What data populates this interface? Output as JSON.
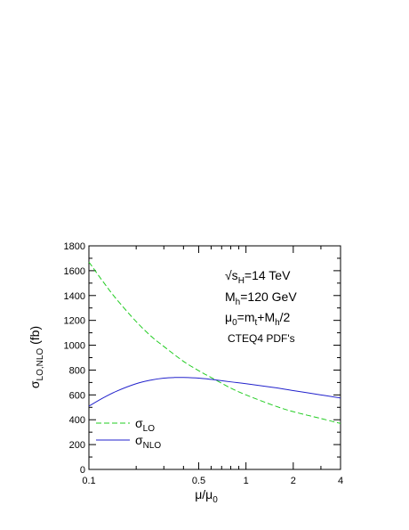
{
  "chart_data": {
    "type": "line",
    "title": "",
    "xlabel": {
      "main": "μ/μ",
      "sub": "0"
    },
    "ylabel": {
      "main": "σ",
      "sub": "LO,NLO",
      "tail": " (fb)"
    },
    "x_scale": "log",
    "xlim": [
      0.1,
      4
    ],
    "ylim": [
      0,
      1800
    ],
    "x_ticks_major": [
      {
        "value": 0.1,
        "label": "0.1"
      },
      {
        "value": 0.5,
        "label": "0.5"
      },
      {
        "value": 1,
        "label": "1"
      },
      {
        "value": 2,
        "label": "2"
      },
      {
        "value": 4,
        "label": "4"
      }
    ],
    "x_ticks_minor": [
      0.2,
      0.3,
      0.4,
      0.6,
      0.7,
      0.8,
      0.9,
      3
    ],
    "y_ticks": [
      {
        "value": 0,
        "label": "0"
      },
      {
        "value": 200,
        "label": "200"
      },
      {
        "value": 400,
        "label": "400"
      },
      {
        "value": 600,
        "label": "600"
      },
      {
        "value": 800,
        "label": "800"
      },
      {
        "value": 1000,
        "label": "1000"
      },
      {
        "value": 1200,
        "label": "1200"
      },
      {
        "value": 1400,
        "label": "1400"
      },
      {
        "value": 1600,
        "label": "1600"
      },
      {
        "value": 1800,
        "label": "1800"
      }
    ],
    "y_minor_step": 100,
    "grid": false,
    "legend_position": "bottom-left",
    "series": [
      {
        "name": {
          "main": "σ",
          "sub": "LO"
        },
        "color": "#22cc22",
        "dash": "dashed",
        "x": [
          0.1,
          0.125,
          0.15,
          0.2,
          0.25,
          0.3,
          0.4,
          0.5,
          0.6,
          0.8,
          1.0,
          1.5,
          2.0,
          3.0,
          4.0
        ],
        "y": [
          1670,
          1500,
          1370,
          1190,
          1070,
          990,
          870,
          795,
          740,
          655,
          600,
          515,
          465,
          410,
          370
        ]
      },
      {
        "name": {
          "main": "σ",
          "sub": "NLO"
        },
        "color": "#2222cc",
        "dash": "solid",
        "x": [
          0.1,
          0.125,
          0.15,
          0.2,
          0.25,
          0.3,
          0.35,
          0.4,
          0.5,
          0.6,
          0.8,
          1.0,
          1.5,
          2.0,
          3.0,
          4.0
        ],
        "y": [
          510,
          580,
          630,
          690,
          720,
          735,
          740,
          740,
          735,
          725,
          705,
          690,
          660,
          635,
          600,
          575
        ]
      }
    ],
    "annotations": {
      "line1": {
        "prefix": "√s",
        "sub": "H",
        "suffix": "=14 TeV"
      },
      "line2": {
        "prefix": "M",
        "sub": "h",
        "suffix": "=120 GeV"
      },
      "line3": {
        "prefix": "μ",
        "sub": "0",
        "suffix": "=m",
        "sub2": "t",
        "suffix2": "+M",
        "sub3": "h",
        "suffix3": "/2"
      },
      "line4": "CTEQ4 PDF's"
    }
  }
}
